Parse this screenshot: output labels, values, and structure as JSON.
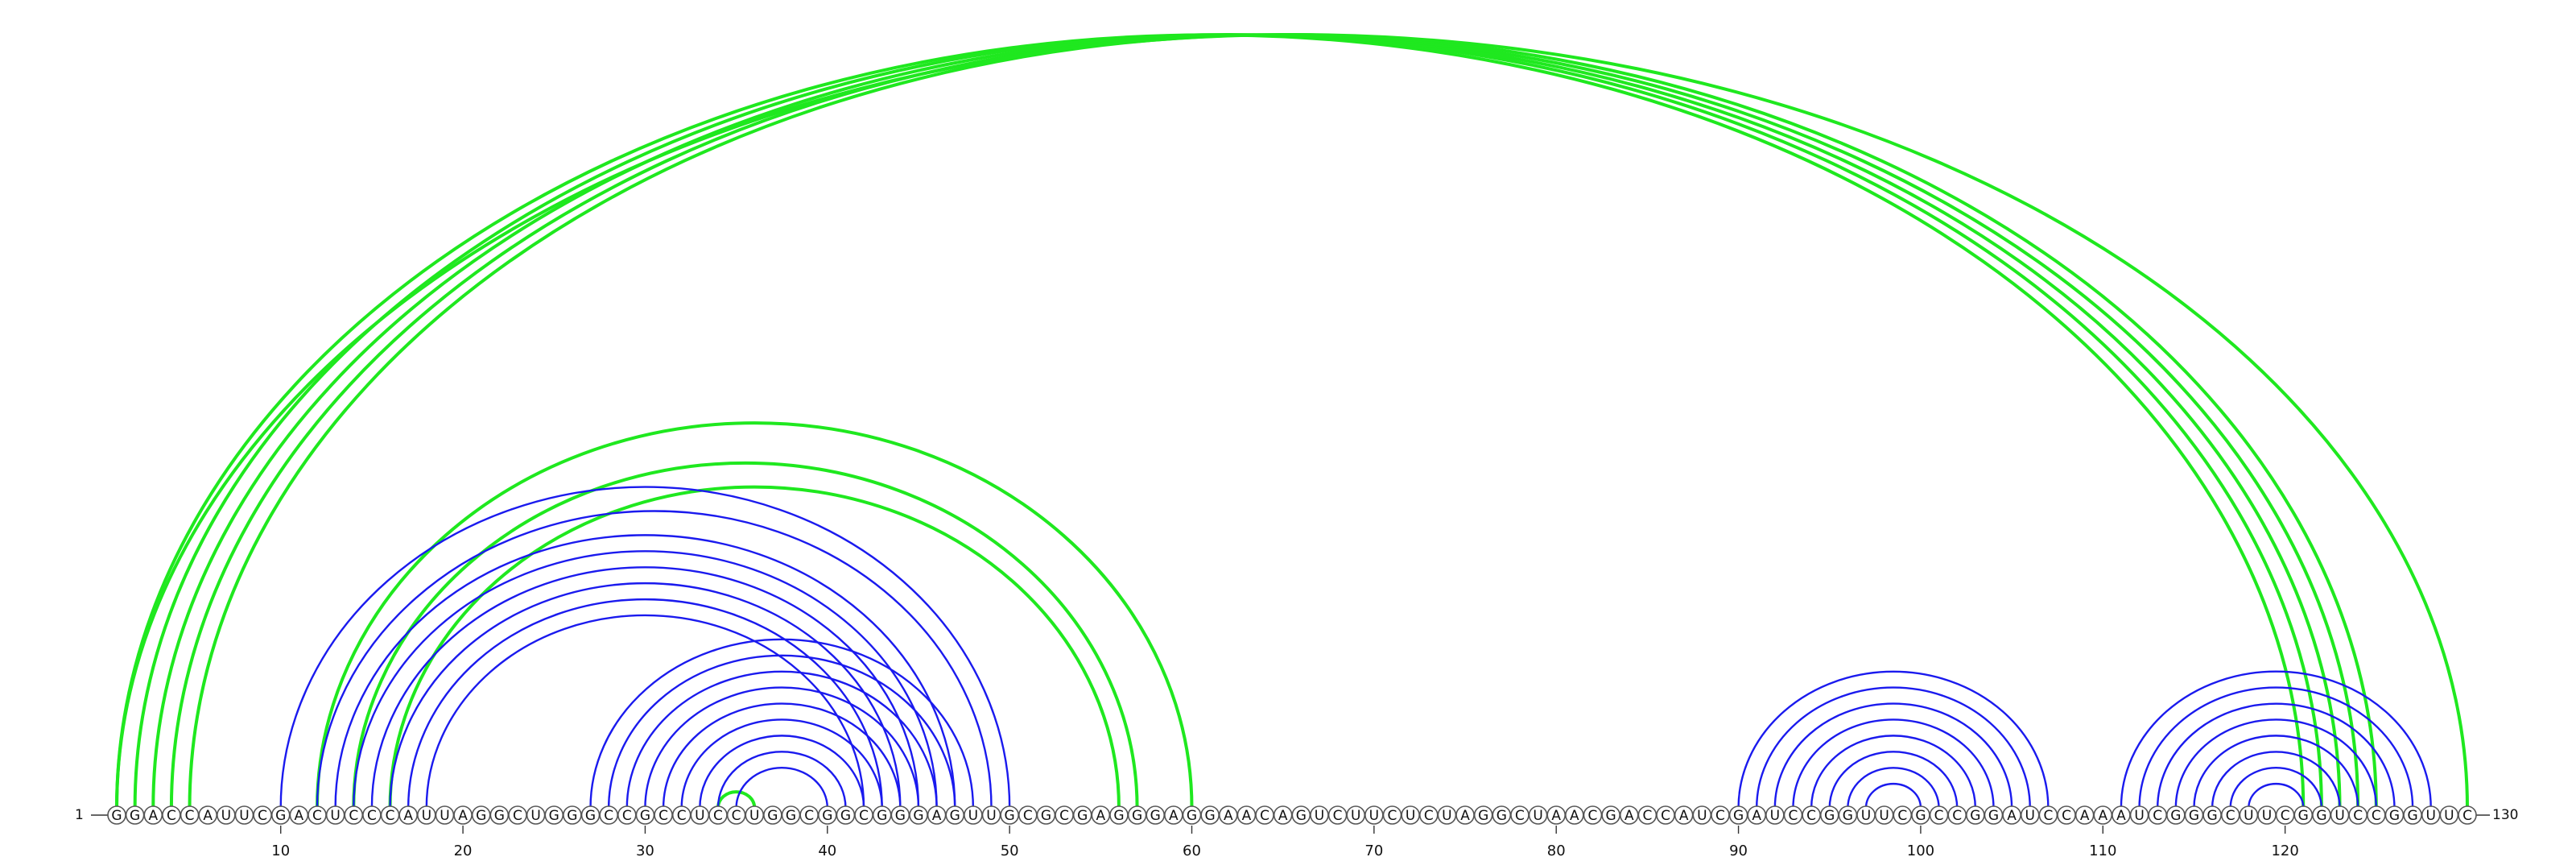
{
  "sequence": "GGACCAUUCGACUCCCAUUAGGCUGGGCCGCCUCCUGGCGGCGGGAGUUGCGCGAGGGAGGAACAGUCUUCUCUAGGCUAACGACCAUCGAUCCGGUUCGCCGGAUCCAAAUCGGGCUUCGGUCCGGUUC",
  "start_label": "1",
  "end_label": "130",
  "ticks": [
    {
      "pos": 10,
      "label": "10"
    },
    {
      "pos": 20,
      "label": "20"
    },
    {
      "pos": 30,
      "label": "30"
    },
    {
      "pos": 40,
      "label": "40"
    },
    {
      "pos": 50,
      "label": "50"
    },
    {
      "pos": 60,
      "label": "60"
    },
    {
      "pos": 70,
      "label": "70"
    },
    {
      "pos": 80,
      "label": "80"
    },
    {
      "pos": 90,
      "label": "90"
    },
    {
      "pos": 100,
      "label": "100"
    },
    {
      "pos": 110,
      "label": "110"
    },
    {
      "pos": 120,
      "label": "120"
    }
  ],
  "colors": {
    "structure_a": "#1a1aee",
    "structure_b": "#1fe81f"
  },
  "blue_pairs": [
    [
      10,
      50
    ],
    [
      12,
      49
    ],
    [
      13,
      47
    ],
    [
      14,
      46
    ],
    [
      15,
      45
    ],
    [
      16,
      44
    ],
    [
      17,
      43
    ],
    [
      18,
      42
    ],
    [
      27,
      48
    ],
    [
      28,
      47
    ],
    [
      29,
      46
    ],
    [
      30,
      45
    ],
    [
      31,
      44
    ],
    [
      32,
      43
    ],
    [
      33,
      42
    ],
    [
      34,
      41
    ],
    [
      35,
      40
    ],
    [
      90,
      107
    ],
    [
      91,
      106
    ],
    [
      92,
      105
    ],
    [
      93,
      104
    ],
    [
      94,
      103
    ],
    [
      95,
      102
    ],
    [
      96,
      101
    ],
    [
      97,
      100
    ],
    [
      111,
      128
    ],
    [
      112,
      127
    ],
    [
      113,
      126
    ],
    [
      114,
      125
    ],
    [
      115,
      124
    ],
    [
      116,
      123
    ],
    [
      117,
      122
    ],
    [
      118,
      121
    ]
  ],
  "green_pairs": [
    [
      1,
      121
    ],
    [
      2,
      122
    ],
    [
      3,
      123
    ],
    [
      4,
      124
    ],
    [
      5,
      125
    ],
    [
      1,
      130
    ],
    [
      12,
      60
    ],
    [
      14,
      57
    ],
    [
      16,
      56
    ],
    [
      34,
      36
    ]
  ]
}
